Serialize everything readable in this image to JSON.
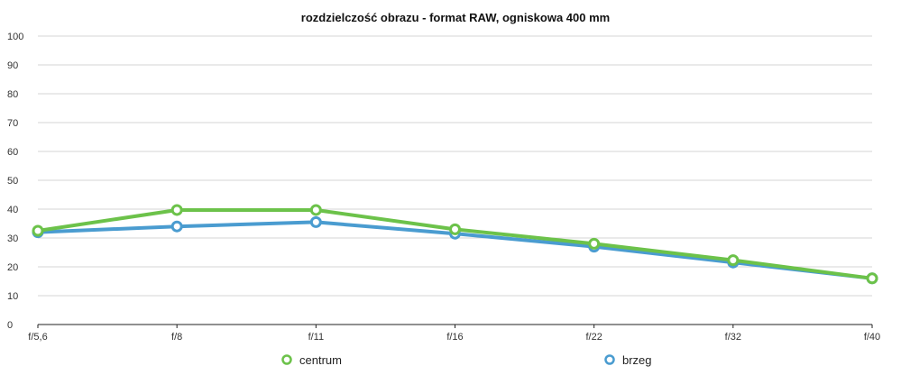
{
  "chart_data": {
    "type": "line",
    "title": "rozdzielczość obrazu - format RAW, ogniskowa 400 mm",
    "xlabel": "",
    "ylabel": "",
    "categories": [
      "f/5,6",
      "f/8",
      "f/11",
      "f/16",
      "f/22",
      "f/32",
      "f/40"
    ],
    "ylim": [
      0,
      100
    ],
    "yticks": [
      0,
      10,
      20,
      30,
      40,
      50,
      60,
      70,
      80,
      90,
      100
    ],
    "grid": true,
    "legend_position": "bottom",
    "series": [
      {
        "name": "brzeg",
        "color": "#4a9cd0",
        "values": [
          32,
          34,
          35.5,
          31.5,
          27,
          21.5,
          16
        ]
      },
      {
        "name": "centrum",
        "color": "#6cc24a",
        "values": [
          32.5,
          39.7,
          39.7,
          33,
          28,
          22.3,
          16
        ]
      }
    ]
  }
}
